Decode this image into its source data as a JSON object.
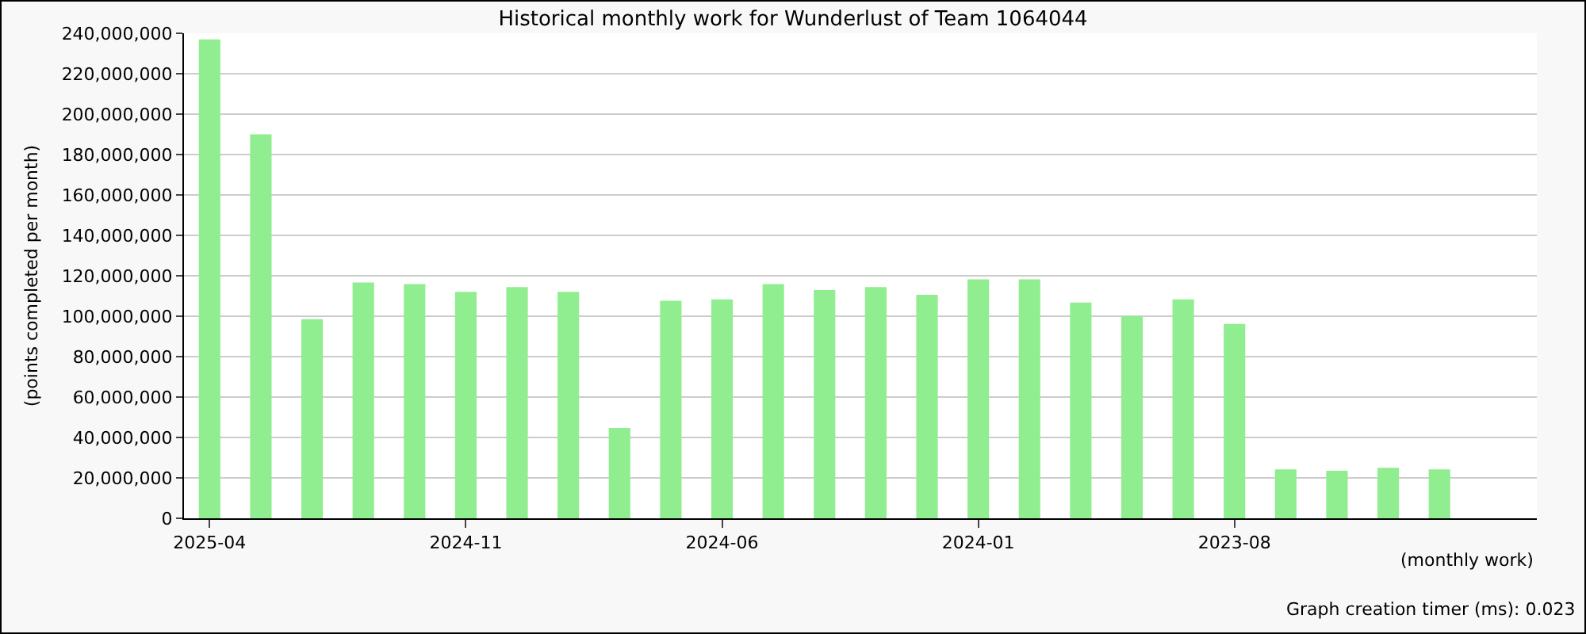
{
  "chart_data": {
    "type": "bar",
    "title": "Historical monthly work for Wunderlust of Team 1064044",
    "xlabel": "(monthly work)",
    "ylabel": "(points completed per month)",
    "annotations": [
      "Graph creation timer (ms): 0.023"
    ],
    "categories": [
      "2025-04",
      null,
      null,
      null,
      null,
      "2024-11",
      null,
      null,
      null,
      null,
      "2024-06",
      null,
      null,
      null,
      null,
      "2024-01",
      null,
      null,
      null,
      null,
      "2023-08",
      null,
      null,
      null,
      null
    ],
    "values": [
      237000000,
      190000000,
      98500000,
      116700000,
      115900000,
      112100000,
      114400000,
      112100000,
      44700000,
      107600000,
      108300000,
      115900000,
      112900000,
      114400000,
      110600000,
      118200000,
      118200000,
      106800000,
      100000000,
      108300000,
      96200000,
      24200000,
      23500000,
      25000000,
      24200000
    ],
    "color": "#90ee90",
    "ylim": [
      0,
      240000000
    ],
    "yticks": [
      {
        "value": 0,
        "label": "0"
      },
      {
        "value": 20000000,
        "label": "20,000,000"
      },
      {
        "value": 40000000,
        "label": "40,000,000"
      },
      {
        "value": 60000000,
        "label": "60,000,000"
      },
      {
        "value": 80000000,
        "label": "80,000,000"
      },
      {
        "value": 100000000,
        "label": "100,000,000"
      },
      {
        "value": 120000000,
        "label": "120,000,000"
      },
      {
        "value": 140000000,
        "label": "140,000,000"
      },
      {
        "value": 160000000,
        "label": "160,000,000"
      },
      {
        "value": 180000000,
        "label": "180,000,000"
      },
      {
        "value": 200000000,
        "label": "200,000,000"
      },
      {
        "value": 220000000,
        "label": "220,000,000"
      },
      {
        "value": 240000000,
        "label": "240,000,000"
      }
    ],
    "grid": "y",
    "legend": false
  }
}
